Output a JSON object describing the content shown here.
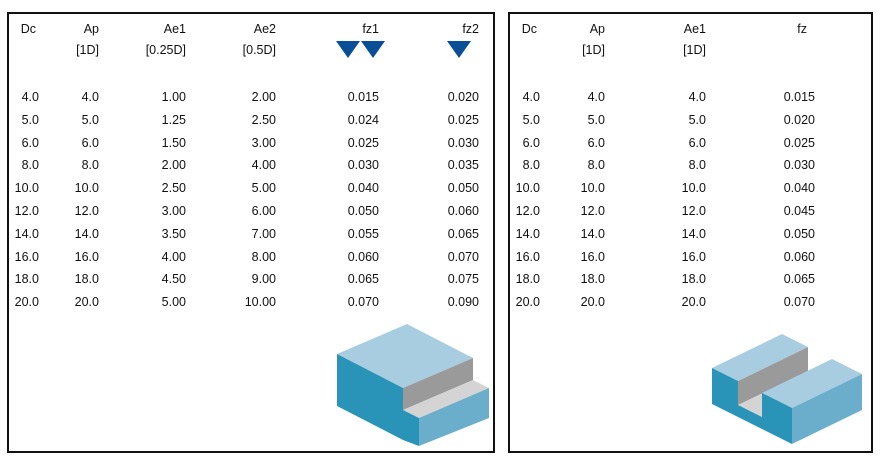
{
  "left_table": {
    "headers": [
      "Dc",
      "Ap",
      "Ae1",
      "Ae2",
      "fz1",
      "fz2"
    ],
    "subheaders": [
      "",
      "[1D]",
      "[0.25D]",
      "[0.5D]",
      "",
      ""
    ],
    "rows": [
      [
        "4.0",
        "4.0",
        "1.00",
        "2.00",
        "0.015",
        "0.020"
      ],
      [
        "5.0",
        "5.0",
        "1.25",
        "2.50",
        "0.024",
        "0.025"
      ],
      [
        "6.0",
        "6.0",
        "1.50",
        "3.00",
        "0.025",
        "0.030"
      ],
      [
        "8.0",
        "8.0",
        "2.00",
        "4.00",
        "0.030",
        "0.035"
      ],
      [
        "10.0",
        "10.0",
        "2.50",
        "5.00",
        "0.040",
        "0.050"
      ],
      [
        "12.0",
        "12.0",
        "3.00",
        "6.00",
        "0.050",
        "0.060"
      ],
      [
        "14.0",
        "14.0",
        "3.50",
        "7.00",
        "0.055",
        "0.065"
      ],
      [
        "16.0",
        "16.0",
        "4.00",
        "8.00",
        "0.060",
        "0.070"
      ],
      [
        "18.0",
        "18.0",
        "4.50",
        "9.00",
        "0.065",
        "0.075"
      ],
      [
        "20.0",
        "20.0",
        "5.00",
        "10.00",
        "0.070",
        "0.090"
      ]
    ]
  },
  "right_table": {
    "headers": [
      "Dc",
      "Ap",
      "Ae1",
      "fz"
    ],
    "subheaders": [
      "",
      "[1D]",
      "[1D]",
      ""
    ],
    "rows": [
      [
        "4.0",
        "4.0",
        "4.0",
        "0.015"
      ],
      [
        "5.0",
        "5.0",
        "5.0",
        "0.020"
      ],
      [
        "6.0",
        "6.0",
        "6.0",
        "0.025"
      ],
      [
        "8.0",
        "8.0",
        "8.0",
        "0.030"
      ],
      [
        "10.0",
        "10.0",
        "10.0",
        "0.040"
      ],
      [
        "12.0",
        "12.0",
        "12.0",
        "0.045"
      ],
      [
        "14.0",
        "14.0",
        "14.0",
        "0.050"
      ],
      [
        "16.0",
        "16.0",
        "16.0",
        "0.060"
      ],
      [
        "18.0",
        "18.0",
        "18.0",
        "0.065"
      ],
      [
        "20.0",
        "20.0",
        "20.0",
        "0.070"
      ]
    ]
  },
  "colors": {
    "marker_blue": "#0a4f96",
    "block_top": "#a9cde0",
    "block_front": "#2a93b8",
    "block_side": "#6aaecb",
    "cut_wall": "#9a9a9a",
    "cut_floor": "#d4d4d4"
  },
  "icons": {
    "fz1_marker": "double-down-triangle-icon",
    "fz2_marker": "down-triangle-icon",
    "left_illustration": "step-shoulder-milling-block-icon",
    "right_illustration": "slot-milling-block-icon"
  }
}
